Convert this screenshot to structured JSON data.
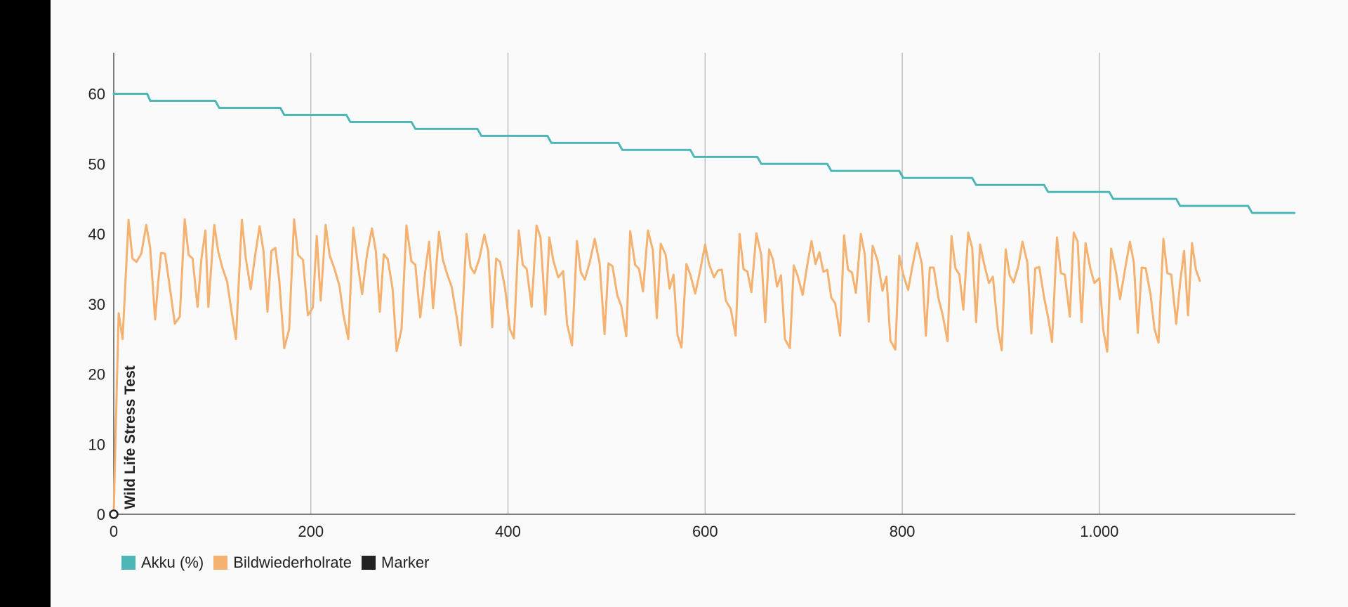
{
  "chart_data": {
    "type": "line",
    "title": "",
    "xlabel": "",
    "ylabel": "",
    "xlim": [
      0,
      1198
    ],
    "ylim": [
      0,
      66
    ],
    "x_ticks": [
      0,
      200,
      400,
      600,
      800,
      1000
    ],
    "x_tick_labels": [
      "0",
      "200",
      "400",
      "600",
      "800",
      "1.000"
    ],
    "y_ticks": [
      0,
      10,
      20,
      30,
      40,
      50,
      60
    ],
    "y_tick_labels": [
      "0",
      "10",
      "20",
      "30",
      "40",
      "50",
      "60"
    ],
    "grid": "vertical",
    "legend_position": "bottom-left",
    "colors": {
      "akku": "#4db6b6",
      "fps": "#f5b16f",
      "marker": "#222222",
      "axis": "#555555",
      "grid": "#b0b0b0"
    },
    "series": [
      {
        "name": "Akku (%)",
        "points": [
          [
            0,
            60
          ],
          [
            34,
            60
          ],
          [
            37,
            59
          ],
          [
            103,
            59
          ],
          [
            107,
            58
          ],
          [
            169,
            58
          ],
          [
            173,
            57
          ],
          [
            236,
            57
          ],
          [
            240,
            56
          ],
          [
            302,
            56
          ],
          [
            306,
            55
          ],
          [
            369,
            55
          ],
          [
            373,
            54
          ],
          [
            440,
            54
          ],
          [
            444,
            53
          ],
          [
            512,
            53
          ],
          [
            516,
            52
          ],
          [
            585,
            52
          ],
          [
            589,
            51
          ],
          [
            653,
            51
          ],
          [
            657,
            50
          ],
          [
            724,
            50
          ],
          [
            728,
            49
          ],
          [
            797,
            49
          ],
          [
            801,
            48
          ],
          [
            871,
            48
          ],
          [
            875,
            47
          ],
          [
            944,
            47
          ],
          [
            948,
            46
          ],
          [
            1010,
            46
          ],
          [
            1014,
            45
          ],
          [
            1078,
            45
          ],
          [
            1082,
            44
          ],
          [
            1151,
            44
          ],
          [
            1155,
            43
          ],
          [
            1198,
            43
          ]
        ]
      },
      {
        "name": "Bildwiederholrate",
        "points": [
          [
            0,
            0
          ],
          [
            2,
            12
          ],
          [
            5,
            28.7
          ],
          [
            9,
            25
          ],
          [
            15,
            42
          ],
          [
            19,
            36.5
          ],
          [
            23,
            36
          ],
          [
            28,
            37.2
          ],
          [
            33,
            41.3
          ],
          [
            37,
            38
          ],
          [
            42,
            27.8
          ],
          [
            45,
            33
          ],
          [
            48,
            37.3
          ],
          [
            52,
            37.2
          ],
          [
            56,
            33.3
          ],
          [
            62,
            27.2
          ],
          [
            67,
            28.2
          ],
          [
            72,
            42.1
          ],
          [
            76,
            37
          ],
          [
            80,
            36.5
          ],
          [
            85,
            29.6
          ],
          [
            89,
            36.5
          ],
          [
            93,
            40.5
          ],
          [
            96,
            29.6
          ],
          [
            102,
            41.3
          ],
          [
            106,
            37.5
          ],
          [
            110,
            35.3
          ],
          [
            115,
            33.2
          ],
          [
            120,
            28.5
          ],
          [
            124,
            25
          ],
          [
            130,
            42
          ],
          [
            134,
            36.5
          ],
          [
            139,
            32.1
          ],
          [
            143,
            36.5
          ],
          [
            148,
            41.1
          ],
          [
            152,
            37.5
          ],
          [
            156,
            28.9
          ],
          [
            160,
            37.6
          ],
          [
            164,
            38
          ],
          [
            168,
            33.3
          ],
          [
            173,
            23.7
          ],
          [
            178,
            26.4
          ],
          [
            183,
            42.1
          ],
          [
            187,
            37
          ],
          [
            192,
            36.3
          ],
          [
            197,
            28.4
          ],
          [
            202,
            29.5
          ],
          [
            206,
            39.7
          ],
          [
            210,
            30.5
          ],
          [
            215,
            41.3
          ],
          [
            219,
            37
          ],
          [
            224,
            35
          ],
          [
            229,
            32.6
          ],
          [
            233,
            28.5
          ],
          [
            238,
            25
          ],
          [
            243,
            40.9
          ],
          [
            248,
            35.3
          ],
          [
            252,
            31.4
          ],
          [
            257,
            37.1
          ],
          [
            262,
            40.8
          ],
          [
            266,
            37.5
          ],
          [
            270,
            28.9
          ],
          [
            274,
            37.1
          ],
          [
            278,
            36.4
          ],
          [
            283,
            32.1
          ],
          [
            287,
            23.3
          ],
          [
            292,
            26.4
          ],
          [
            297,
            41.2
          ],
          [
            302,
            36.1
          ],
          [
            306,
            35.6
          ],
          [
            311,
            28.1
          ],
          [
            316,
            34.6
          ],
          [
            320,
            38.9
          ],
          [
            324,
            29.4
          ],
          [
            330,
            40.3
          ],
          [
            334,
            36.3
          ],
          [
            338,
            34.4
          ],
          [
            343,
            32.4
          ],
          [
            348,
            28.1
          ],
          [
            352,
            24.1
          ],
          [
            358,
            40
          ],
          [
            362,
            35.3
          ],
          [
            366,
            34.4
          ],
          [
            371,
            36.5
          ],
          [
            376,
            39.9
          ],
          [
            380,
            37.5
          ],
          [
            384,
            26.7
          ],
          [
            388,
            36.5
          ],
          [
            392,
            36
          ],
          [
            397,
            32.3
          ],
          [
            402,
            26.4
          ],
          [
            406,
            25.1
          ],
          [
            411,
            40.5
          ],
          [
            415,
            35.6
          ],
          [
            419,
            35
          ],
          [
            424,
            29.6
          ],
          [
            429,
            41.2
          ],
          [
            433,
            39.5
          ],
          [
            438,
            28.5
          ],
          [
            442,
            39.5
          ],
          [
            446,
            36.2
          ],
          [
            451,
            33.8
          ],
          [
            456,
            34.7
          ],
          [
            460,
            27.1
          ],
          [
            465,
            24.1
          ],
          [
            470,
            39
          ],
          [
            474,
            34.5
          ],
          [
            478,
            33.5
          ],
          [
            483,
            36
          ],
          [
            488,
            39.3
          ],
          [
            493,
            35.8
          ],
          [
            498,
            25.7
          ],
          [
            502,
            35.8
          ],
          [
            506,
            35.4
          ],
          [
            511,
            31.2
          ],
          [
            515,
            29.7
          ],
          [
            520,
            25.4
          ],
          [
            524,
            40.4
          ],
          [
            529,
            35.6
          ],
          [
            533,
            35
          ],
          [
            537,
            31.8
          ],
          [
            542,
            40.5
          ],
          [
            547,
            37.7
          ],
          [
            551,
            28
          ],
          [
            555,
            38.6
          ],
          [
            560,
            37
          ],
          [
            564,
            32.2
          ],
          [
            568,
            34.2
          ],
          [
            572,
            25.6
          ],
          [
            576,
            23.8
          ],
          [
            581,
            35.7
          ],
          [
            585,
            34.2
          ],
          [
            590,
            31.5
          ],
          [
            595,
            34.8
          ],
          [
            600,
            38.5
          ],
          [
            604,
            35.7
          ],
          [
            609,
            33.8
          ],
          [
            613,
            34.8
          ],
          [
            617,
            34.9
          ],
          [
            621,
            30.5
          ],
          [
            626,
            29.3
          ],
          [
            631,
            25.5
          ],
          [
            635,
            40
          ],
          [
            639,
            35
          ],
          [
            643,
            34.6
          ],
          [
            647,
            31.7
          ],
          [
            652,
            40.1
          ],
          [
            657,
            37
          ],
          [
            661,
            27.4
          ],
          [
            665,
            37.8
          ],
          [
            669,
            36.3
          ],
          [
            673,
            32.5
          ],
          [
            677,
            34.1
          ],
          [
            681,
            25
          ],
          [
            686,
            23.7
          ],
          [
            690,
            35.5
          ],
          [
            694,
            34
          ],
          [
            699,
            31.3
          ],
          [
            703,
            35
          ],
          [
            708,
            39
          ],
          [
            712,
            35.7
          ],
          [
            716,
            37.4
          ],
          [
            720,
            34.6
          ],
          [
            724,
            34.9
          ],
          [
            728,
            30.9
          ],
          [
            732,
            30.1
          ],
          [
            737,
            25.5
          ],
          [
            741,
            39.8
          ],
          [
            745,
            34.9
          ],
          [
            749,
            34.5
          ],
          [
            753,
            31.6
          ],
          [
            758,
            40
          ],
          [
            762,
            37.1
          ],
          [
            766,
            27.5
          ],
          [
            770,
            38.3
          ],
          [
            775,
            36.2
          ],
          [
            780,
            31.9
          ],
          [
            784,
            33.9
          ],
          [
            788,
            24.8
          ],
          [
            793,
            23.5
          ],
          [
            797,
            36.9
          ],
          [
            801,
            34.2
          ],
          [
            806,
            32
          ],
          [
            810,
            35.1
          ],
          [
            815,
            38.7
          ],
          [
            820,
            35.7
          ],
          [
            824,
            25.5
          ],
          [
            828,
            35.2
          ],
          [
            832,
            35.2
          ],
          [
            837,
            30.7
          ],
          [
            841,
            28.5
          ],
          [
            846,
            24.7
          ],
          [
            850,
            39.7
          ],
          [
            854,
            35.1
          ],
          [
            858,
            34.2
          ],
          [
            862,
            29.2
          ],
          [
            867,
            40.2
          ],
          [
            871,
            38
          ],
          [
            875,
            27.4
          ],
          [
            879,
            38.5
          ],
          [
            883,
            35.8
          ],
          [
            888,
            33
          ],
          [
            892,
            33.9
          ],
          [
            897,
            26.4
          ],
          [
            901,
            23.4
          ],
          [
            905,
            37.8
          ],
          [
            909,
            34.1
          ],
          [
            913,
            33.1
          ],
          [
            918,
            35.5
          ],
          [
            922,
            38.9
          ],
          [
            927,
            35.9
          ],
          [
            931,
            25.8
          ],
          [
            935,
            35.1
          ],
          [
            939,
            35.3
          ],
          [
            944,
            30.9
          ],
          [
            948,
            28.1
          ],
          [
            952,
            24.6
          ],
          [
            957,
            39.5
          ],
          [
            961,
            34.4
          ],
          [
            965,
            34.2
          ],
          [
            970,
            28.2
          ],
          [
            974,
            40.2
          ],
          [
            978,
            38.9
          ],
          [
            982,
            27.4
          ],
          [
            986,
            38.7
          ],
          [
            991,
            35
          ],
          [
            995,
            33
          ],
          [
            1000,
            33.7
          ],
          [
            1004,
            26.3
          ],
          [
            1008,
            23.2
          ],
          [
            1012,
            37.9
          ],
          [
            1017,
            34.5
          ],
          [
            1021,
            30.7
          ],
          [
            1026,
            34.9
          ],
          [
            1031,
            38.9
          ],
          [
            1035,
            35.9
          ],
          [
            1039,
            25.9
          ],
          [
            1043,
            35.2
          ],
          [
            1047,
            35.1
          ],
          [
            1052,
            31.3
          ],
          [
            1056,
            26.4
          ],
          [
            1060,
            24.5
          ],
          [
            1065,
            39.3
          ],
          [
            1069,
            34.4
          ],
          [
            1073,
            34.2
          ],
          [
            1078,
            27.2
          ],
          [
            1082,
            33.1
          ],
          [
            1086,
            37.6
          ],
          [
            1090,
            28.4
          ],
          [
            1094,
            38.7
          ],
          [
            1098,
            34.9
          ],
          [
            1102,
            33.3
          ]
        ]
      },
      {
        "name": "Marker",
        "markers": [
          {
            "x": 0,
            "y": 0,
            "label": "Wild Life Stress Test"
          }
        ]
      }
    ]
  }
}
